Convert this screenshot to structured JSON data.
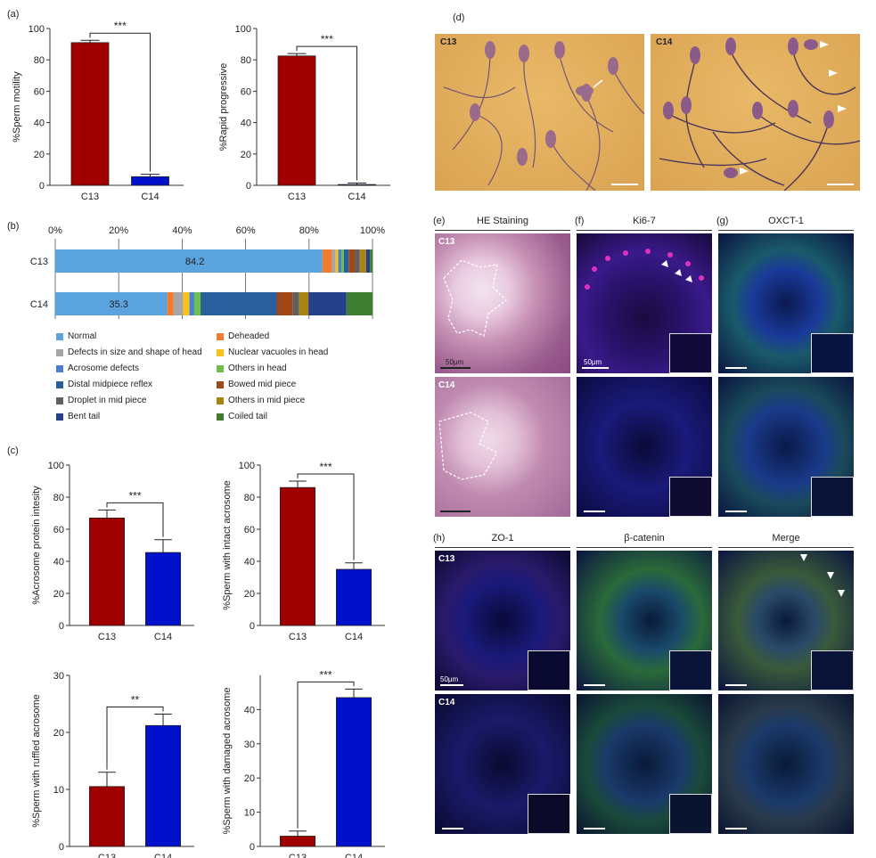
{
  "panels": {
    "a": {
      "letter": "(a)",
      "charts": [
        {
          "ylabel": "%Sperm motility",
          "categories": [
            "C13",
            "C14"
          ],
          "values": [
            91,
            5.5
          ],
          "errors": [
            1.5,
            1.5
          ],
          "ylim": [
            0,
            100
          ],
          "yticks": [
            0,
            20,
            40,
            60,
            80,
            100
          ],
          "sig": "***"
        },
        {
          "ylabel": "%Rapid progressive",
          "categories": [
            "C13",
            "C14"
          ],
          "values": [
            82.5,
            0.5
          ],
          "errors": [
            1.5,
            1
          ],
          "ylim": [
            0,
            100
          ],
          "yticks": [
            0,
            20,
            40,
            60,
            80,
            100
          ],
          "sig": "***"
        }
      ]
    },
    "b": {
      "letter": "(b)",
      "xticks": [
        "0%",
        "20%",
        "40%",
        "60%",
        "80%",
        "100%"
      ],
      "rows": [
        {
          "name": "C13",
          "label": "84.2",
          "segments": [
            84.2,
            3,
            1.2,
            0.8,
            1,
            0.8,
            1.5,
            2,
            1.5,
            2,
            1.2,
            0.8
          ]
        },
        {
          "name": "C14",
          "label": "35.3",
          "segments": [
            35.3,
            2,
            3,
            2,
            1.5,
            2,
            24,
            5,
            2,
            3,
            12,
            8.2
          ]
        }
      ],
      "legend": [
        {
          "label": "Normal",
          "color": "#5aa3de"
        },
        {
          "label": "Deheaded",
          "color": "#ef7c2f"
        },
        {
          "label": "Defects in size and shape of head",
          "color": "#a6a6a6"
        },
        {
          "label": "Nuclear vacuoles in head",
          "color": "#f8c21a"
        },
        {
          "label": "Acrosome defects",
          "color": "#4a7fd0"
        },
        {
          "label": "Others in head",
          "color": "#6bbf4a"
        },
        {
          "label": "Distal midpiece reflex",
          "color": "#2a5f9e"
        },
        {
          "label": "Bowed mid piece",
          "color": "#a0481a"
        },
        {
          "label": "Droplet in mid piece",
          "color": "#5f5f5f"
        },
        {
          "label": "Others in mid piece",
          "color": "#a98415"
        },
        {
          "label": "Bent tail",
          "color": "#26418c"
        },
        {
          "label": "Coiled tail",
          "color": "#3f7d32"
        }
      ]
    },
    "c": {
      "letter": "(c)",
      "charts": [
        {
          "ylabel": "%Acrosome protein intesity",
          "categories": [
            "C13",
            "C14"
          ],
          "values": [
            67,
            45.5
          ],
          "errors": [
            5,
            8
          ],
          "ylim": [
            0,
            100
          ],
          "yticks": [
            0,
            20,
            40,
            60,
            80,
            100
          ],
          "sig": "***"
        },
        {
          "ylabel": "%Sperm with intact acrosome",
          "categories": [
            "C13",
            "C14"
          ],
          "values": [
            86,
            35
          ],
          "errors": [
            4,
            4
          ],
          "ylim": [
            0,
            100
          ],
          "yticks": [
            0,
            20,
            40,
            60,
            80,
            100
          ],
          "sig": "***"
        },
        {
          "ylabel": "%Sperm with ruffled acrosome",
          "categories": [
            "C13",
            "C14"
          ],
          "values": [
            10.5,
            21.2
          ],
          "errors": [
            2.5,
            2
          ],
          "ylim": [
            0,
            30
          ],
          "yticks": [
            0,
            10,
            20,
            30
          ],
          "sig": "**"
        },
        {
          "ylabel": "%Sperm with damaged acrosome",
          "categories": [
            "C13",
            "C14"
          ],
          "values": [
            3,
            43.5
          ],
          "errors": [
            1.5,
            2.5
          ],
          "ylim": [
            0,
            50
          ],
          "yticks": [
            0,
            10,
            20,
            30,
            40
          ],
          "sig": "***"
        }
      ]
    },
    "d": {
      "letter": "(d)",
      "labels": [
        "C13",
        "C14"
      ]
    },
    "e": {
      "letter": "(e)",
      "title": "HE Staining",
      "scale": "50μm",
      "rows": [
        "C13",
        "C14"
      ]
    },
    "f": {
      "letter": "(f)",
      "title": "Ki6-7",
      "scale": "50μm"
    },
    "g": {
      "letter": "(g)",
      "title": "OXCT-1"
    },
    "h": {
      "letter": "(h)",
      "titles": [
        "ZO-1",
        "β-catenin",
        "Merge"
      ],
      "scale": "50μm",
      "rows": [
        "C13",
        "C14"
      ]
    }
  },
  "colors": {
    "c13": "#a00000",
    "c14": "#0011cc"
  }
}
